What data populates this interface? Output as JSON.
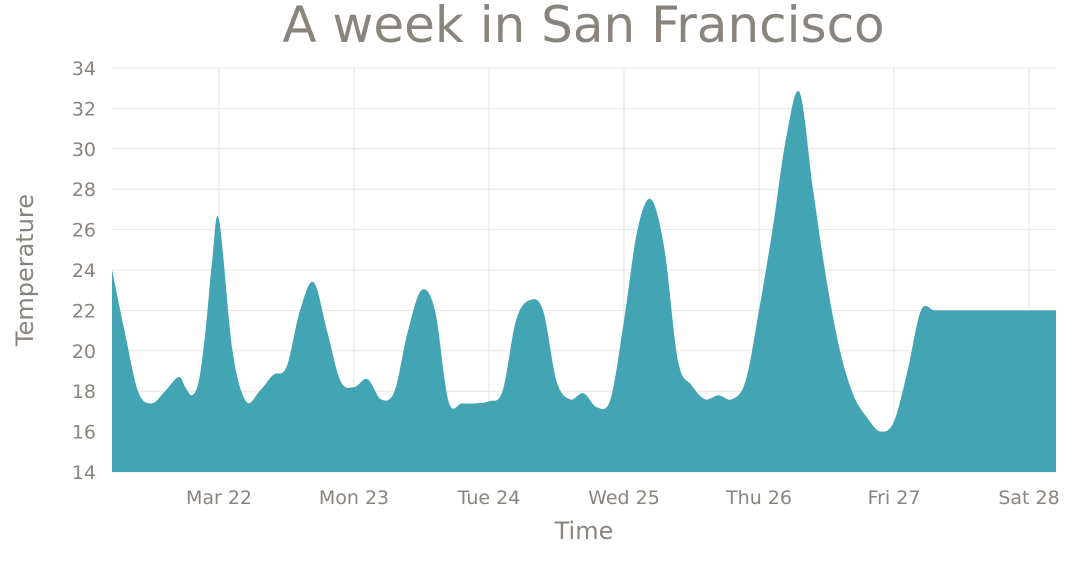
{
  "chart_data": {
    "type": "area",
    "title": "A week in San Francisco",
    "xlabel": "Time",
    "ylabel": "Temperature",
    "ylim": [
      14,
      34
    ],
    "yticks": [
      14,
      16,
      18,
      20,
      22,
      24,
      26,
      28,
      30,
      32,
      34
    ],
    "xticks": [
      "Mar 22",
      "Mon 23",
      "Tue 24",
      "Wed 25",
      "Thu 26",
      "Fri 27",
      "Sat 28"
    ],
    "grid": true,
    "color": "#43a4b4",
    "series": [
      {
        "x": [
          -0.8,
          -0.7,
          -0.6,
          -0.5,
          -0.4,
          -0.3,
          -0.25,
          -0.2,
          -0.15,
          -0.1,
          -0.05,
          0.0,
          0.1,
          0.2,
          0.3,
          0.4,
          0.5,
          0.6,
          0.7,
          0.8,
          0.9,
          1.0,
          1.1,
          1.2,
          1.3,
          1.4,
          1.5,
          1.6,
          1.7,
          1.8,
          1.9,
          2.0,
          2.1,
          2.2,
          2.3,
          2.4,
          2.5,
          2.6,
          2.7,
          2.8,
          2.9,
          3.0,
          3.1,
          3.2,
          3.3,
          3.4,
          3.5,
          3.6,
          3.7,
          3.8,
          3.9,
          4.0,
          4.1,
          4.2,
          4.3,
          4.4,
          4.5,
          4.6,
          4.7,
          4.8,
          4.9,
          5.0,
          5.1,
          5.2,
          5.3,
          5.4,
          5.5,
          5.6,
          5.7,
          5.8,
          5.9,
          6.0,
          6.1,
          6.2
        ],
        "values": [
          24.0,
          21.0,
          18.0,
          17.4,
          18.0,
          18.7,
          18.2,
          17.8,
          18.5,
          21.0,
          24.5,
          26.5,
          20.0,
          17.5,
          18.0,
          18.8,
          19.2,
          22.0,
          23.4,
          21.0,
          18.5,
          18.2,
          18.6,
          17.6,
          18.0,
          21.0,
          23.0,
          22.0,
          17.5,
          17.4,
          17.4,
          17.5,
          18.0,
          21.5,
          22.5,
          22.0,
          18.5,
          17.6,
          17.9,
          17.2,
          17.6,
          21.5,
          26.0,
          27.5,
          25.0,
          19.5,
          18.3,
          17.6,
          17.8,
          17.6,
          18.5,
          22.0,
          26.0,
          30.5,
          32.8,
          28.0,
          23.5,
          20.0,
          17.8,
          16.7,
          16.0,
          16.5,
          19.0,
          22.0,
          22.0,
          22.0,
          22.0,
          22.0,
          22.0,
          22.0,
          22.0,
          22.0,
          22.0,
          22.0
        ]
      }
    ]
  }
}
